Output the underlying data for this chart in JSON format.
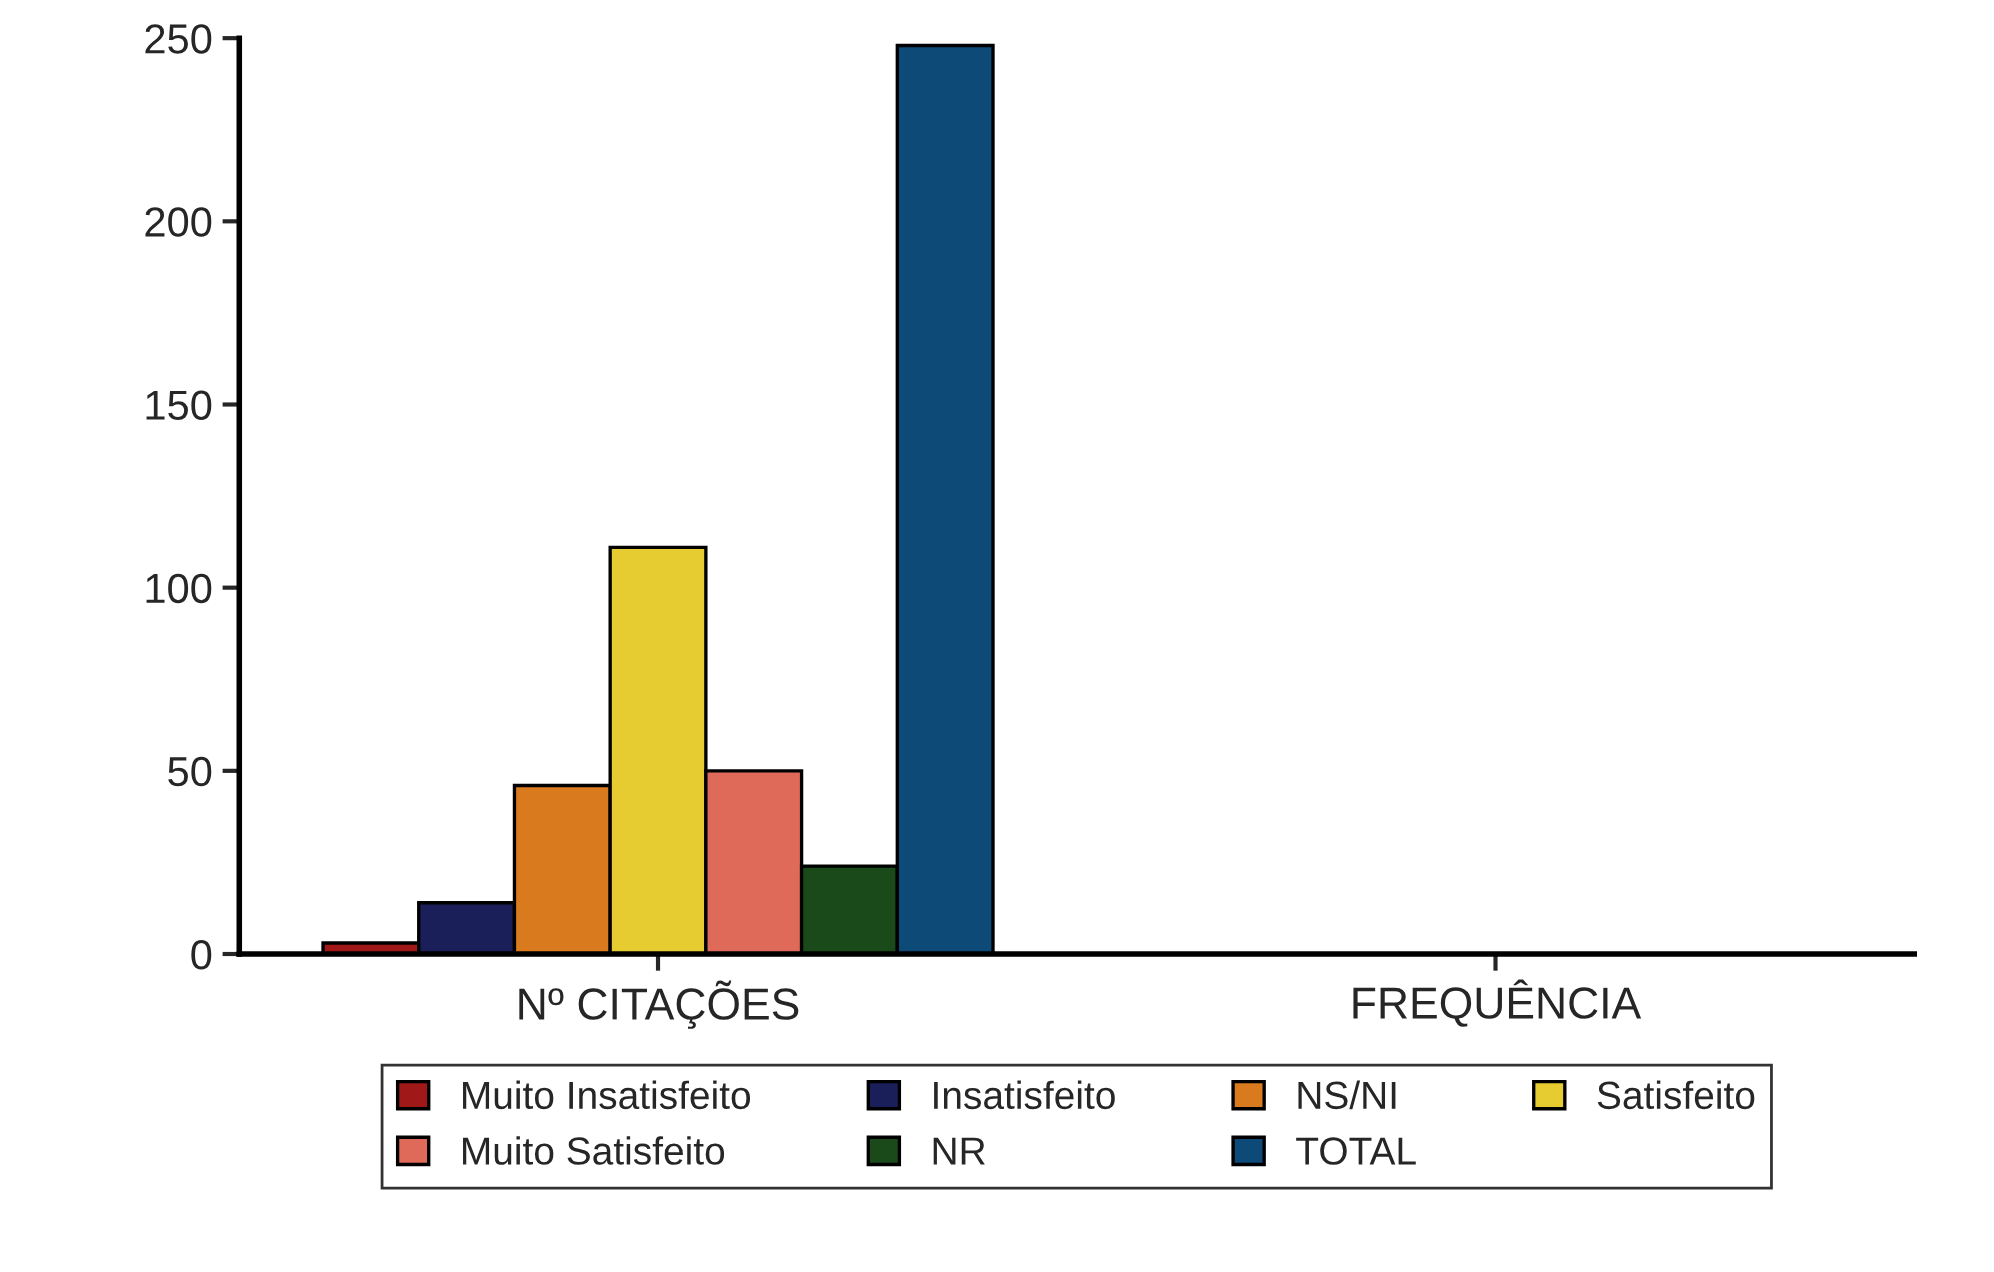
{
  "chart_data": {
    "type": "bar",
    "categories": [
      "Nº CITAÇÕES",
      "FREQUÊNCIA"
    ],
    "series": [
      {
        "name": "Muito Insatisfeito",
        "color": "#a01818",
        "values": [
          3,
          0
        ]
      },
      {
        "name": "Insatisfeito",
        "color": "#1a1f5a",
        "values": [
          14,
          0
        ]
      },
      {
        "name": "NS/NI",
        "color": "#d97a1e",
        "values": [
          46,
          0
        ]
      },
      {
        "name": "Satisfeito",
        "color": "#e6cc30",
        "values": [
          111,
          0
        ]
      },
      {
        "name": "Muito Satisfeito",
        "color": "#e06a5a",
        "values": [
          50,
          0
        ]
      },
      {
        "name": "NR",
        "color": "#1a4a1a",
        "values": [
          24,
          0
        ]
      },
      {
        "name": "TOTAL",
        "color": "#0d4a78",
        "values": [
          248,
          0
        ]
      }
    ],
    "ylim": [
      0,
      250
    ],
    "yticks": [
      0,
      50,
      100,
      150,
      200,
      250
    ],
    "grid": false,
    "legend": "bottom"
  }
}
